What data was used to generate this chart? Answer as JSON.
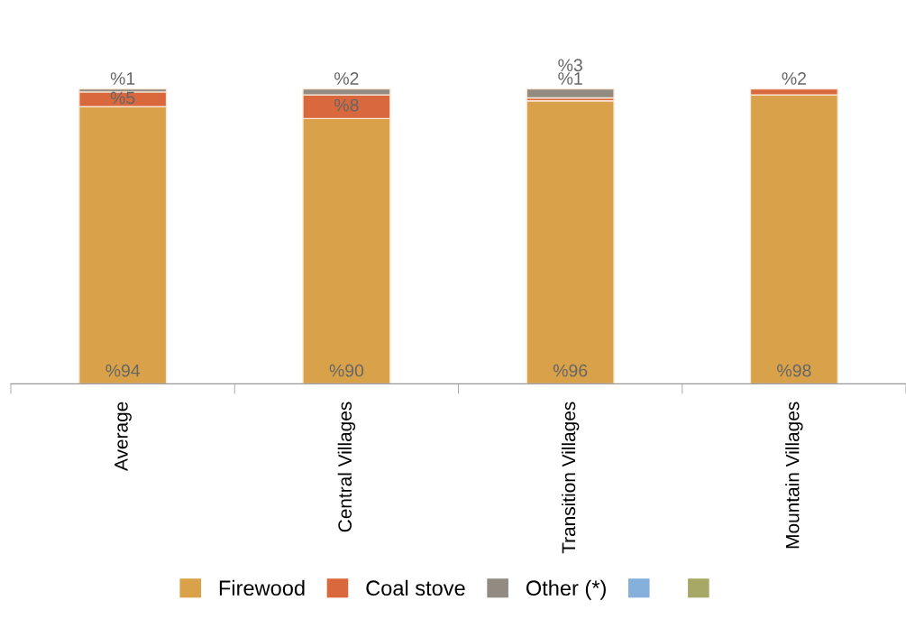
{
  "chart_data": {
    "type": "bar",
    "stacked": true,
    "categories": [
      "Average",
      "Central Villages",
      "Transition Villages",
      "Mountain Villages"
    ],
    "series": [
      {
        "name": "Firewood",
        "color": "#d9a24a",
        "values": [
          94,
          90,
          96,
          98
        ],
        "value_labels": [
          "%94",
          "%90",
          "%96",
          "%98"
        ]
      },
      {
        "name": "Coal stove",
        "color": "#d9693d",
        "values": [
          5,
          8,
          1,
          2
        ],
        "value_labels": [
          "%5",
          "%8",
          "%1",
          "%2"
        ]
      },
      {
        "name": "Other (*)",
        "color": "#918b82",
        "values": [
          1,
          2,
          3,
          0
        ],
        "value_labels": [
          "%1",
          "%2",
          "%3",
          null
        ]
      },
      {
        "color": "#86b0dc",
        "values": [
          null,
          null,
          null,
          null
        ]
      },
      {
        "color": "#a8a866",
        "values": [
          null,
          null,
          null,
          null
        ]
      }
    ],
    "legend": "bottom",
    "grid": false,
    "tick_labels": "x"
  }
}
